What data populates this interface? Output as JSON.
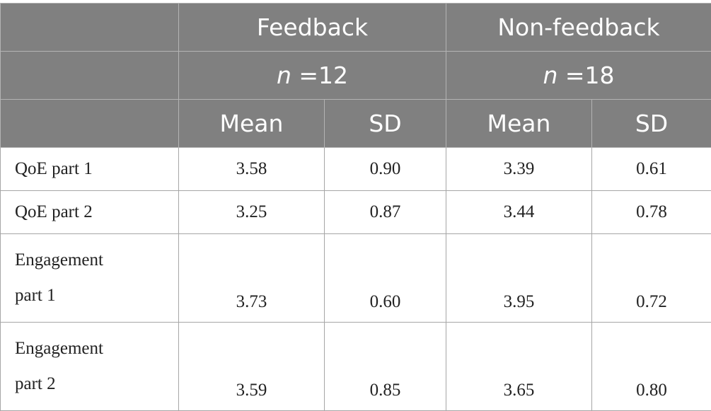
{
  "table": {
    "groups": [
      {
        "label": "Feedback",
        "n_prefix": "n",
        "n_value": " =12"
      },
      {
        "label": "Non-feedback",
        "n_prefix": "n",
        "n_value": " =18"
      }
    ],
    "subheaders": [
      "Mean",
      "SD",
      "Mean",
      "SD"
    ],
    "rows": [
      {
        "label_line1": "QoE part 1",
        "label_line2": "",
        "values": [
          "3.58",
          "0.90",
          "3.39",
          "0.61"
        ]
      },
      {
        "label_line1": "QoE part 2",
        "label_line2": "",
        "values": [
          "3.25",
          "0.87",
          "3.44",
          "0.78"
        ]
      },
      {
        "label_line1": "Engagement",
        "label_line2": "part 1",
        "values": [
          "3.73",
          "0.60",
          "3.95",
          "0.72"
        ]
      },
      {
        "label_line1": "Engagement",
        "label_line2": "part 2",
        "values": [
          "3.59",
          "0.85",
          "3.65",
          "0.80"
        ]
      }
    ]
  }
}
